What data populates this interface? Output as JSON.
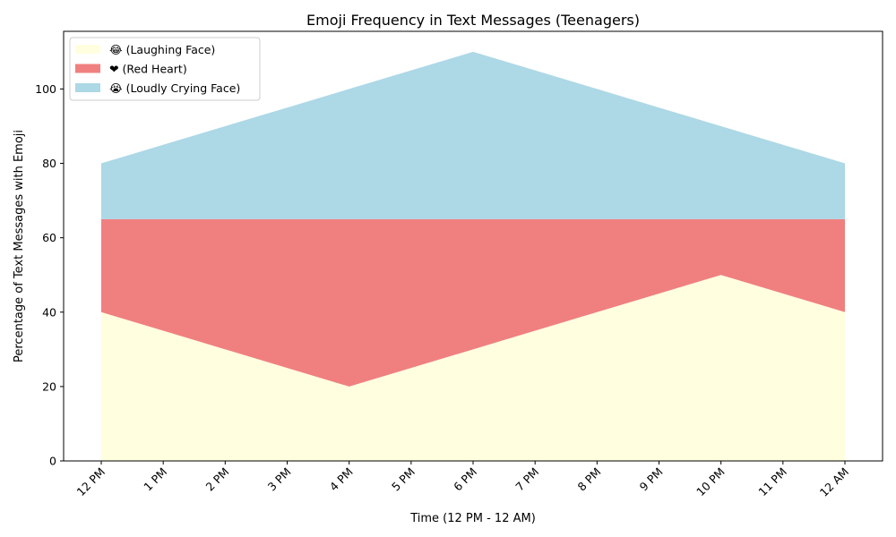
{
  "chart_data": {
    "type": "area",
    "stacked": true,
    "title": "Emoji Frequency in Text Messages (Teenagers)",
    "xlabel": "Time (12 PM - 12 AM)",
    "ylabel": "Percentage of Text Messages with Emoji",
    "categories": [
      "12 PM",
      "1 PM",
      "2 PM",
      "3 PM",
      "4 PM",
      "5 PM",
      "6 PM",
      "7 PM",
      "8 PM",
      "9 PM",
      "10 PM",
      "11 PM",
      "12 AM"
    ],
    "series": [
      {
        "name": "😂 (Laughing Face)",
        "color": "#ffffe0",
        "values": [
          40,
          35,
          30,
          25,
          20,
          25,
          30,
          35,
          40,
          45,
          50,
          45,
          40
        ]
      },
      {
        "name": "❤ (Red Heart)",
        "color": "#f08080",
        "values": [
          25,
          30,
          35,
          40,
          45,
          40,
          35,
          30,
          25,
          20,
          15,
          20,
          25
        ]
      },
      {
        "name": "😭 (Loudly Crying Face)",
        "color": "#add8e6",
        "values": [
          15,
          20,
          25,
          30,
          35,
          40,
          45,
          40,
          35,
          30,
          25,
          20,
          15
        ]
      }
    ],
    "yticks": [
      0,
      20,
      40,
      60,
      80,
      100
    ],
    "ylim": [
      0,
      115.5
    ],
    "grid": false,
    "legend": "upper-left"
  }
}
